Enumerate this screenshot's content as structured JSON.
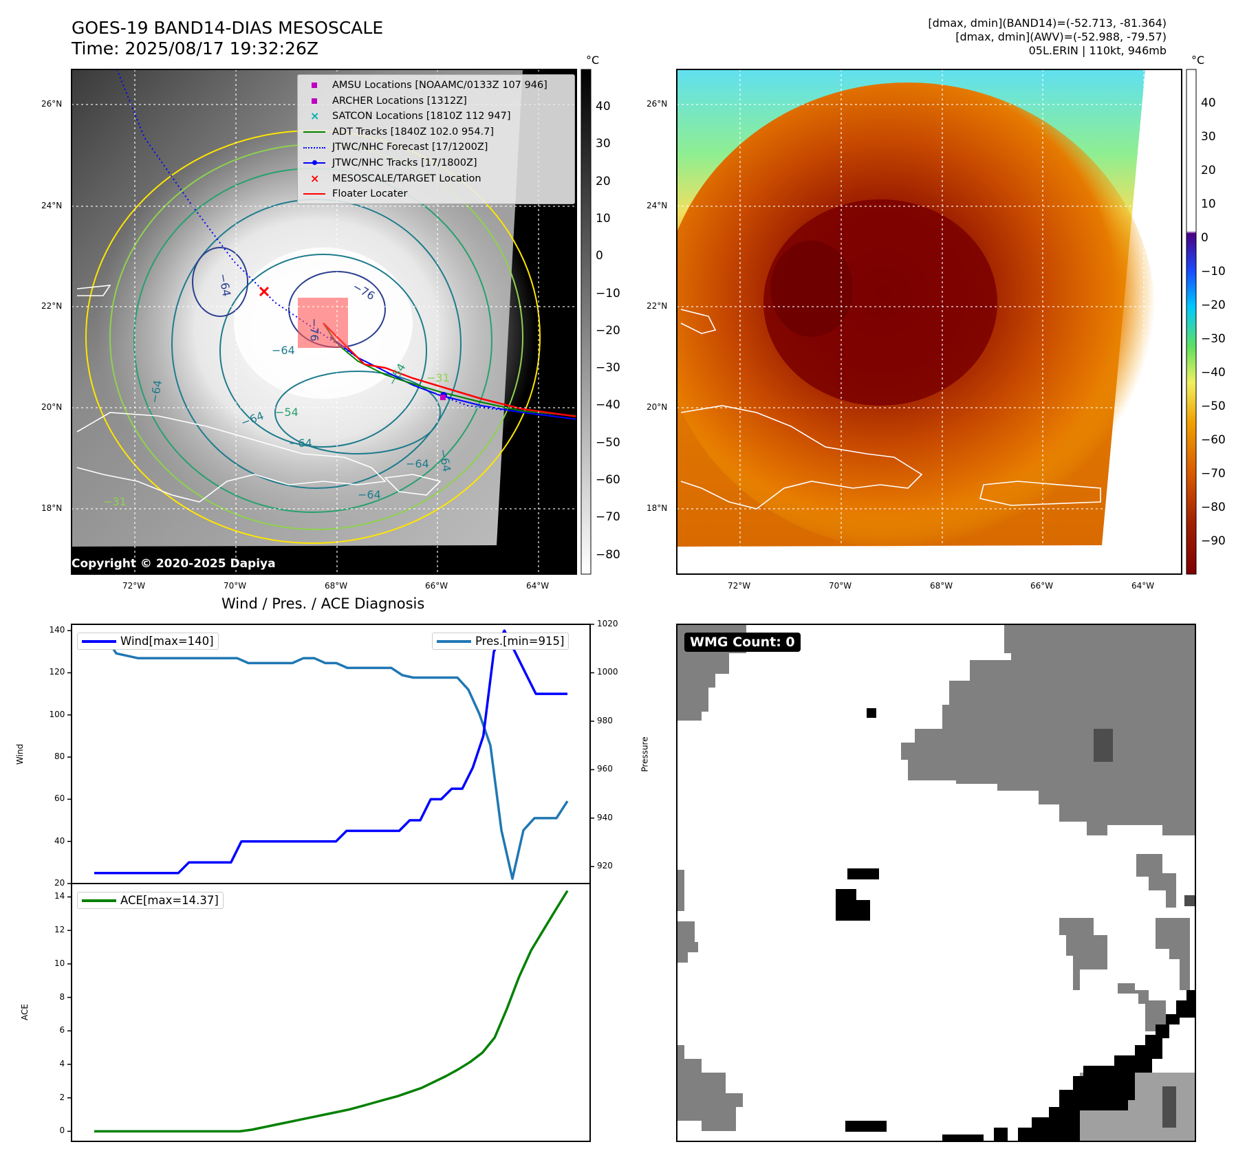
{
  "header": {
    "title_line1": "GOES-19 BAND14-DIAS MESOSCALE",
    "title_line2": "Time: 2025/08/17 19:32:26Z",
    "info_line1": "[dmax, dmin](BAND14)=(-52.713, -81.364)",
    "info_line2": "[dmax, dmin](AWV)=(-52.988, -79.57)",
    "info_line3": "05L.ERIN | 110kt, 946mb"
  },
  "colorbar_unit": "°C",
  "maps": {
    "lat_labels": [
      "26°N",
      "24°N",
      "22°N",
      "20°N",
      "18°N"
    ],
    "lon_labels": [
      "72°W",
      "70°W",
      "68°W",
      "66°W",
      "64°W"
    ],
    "ir_colorbar_ticks": [
      "40",
      "30",
      "20",
      "10",
      "0",
      "−10",
      "−20",
      "−30",
      "−40",
      "−50",
      "−60",
      "−70",
      "−80"
    ],
    "awv_colorbar_ticks": [
      "40",
      "30",
      "20",
      "10",
      "0",
      "−10",
      "−20",
      "−30",
      "−40",
      "−50",
      "−60",
      "−70",
      "−80",
      "−90"
    ],
    "contour_labels": [
      "−76",
      "−64",
      "−76",
      "−64",
      "−64",
      "−64",
      "−64",
      "−54",
      "−54",
      "−31",
      "−31",
      "−64",
      "−64",
      "−64"
    ],
    "legend": [
      {
        "label": "AMSU Locations [NOAAMC/0133Z 107 946]",
        "color": "#c000c0",
        "symbol": "square"
      },
      {
        "label": "ARCHER Locations [1312Z]",
        "color": "#c000c0",
        "symbol": "square"
      },
      {
        "label": "SATCON Locations [1810Z 112 947]",
        "color": "#00b0b0",
        "symbol": "x"
      },
      {
        "label": "ADT Tracks [1840Z 102.0 954.7]",
        "color": "#008000",
        "symbol": "line"
      },
      {
        "label": "JTWC/NHC Forecast [17/1200Z]",
        "color": "#0000ff",
        "symbol": "dotted"
      },
      {
        "label": "JTWC/NHC Tracks [17/1800Z]",
        "color": "#0000ff",
        "symbol": "line-dot"
      },
      {
        "label": "MESOSCALE/TARGET Location",
        "color": "#ff0000",
        "symbol": "x"
      },
      {
        "label": "Floater Locater",
        "color": "#ff0000",
        "symbol": "line"
      }
    ],
    "copyright": "Copyright © 2020-2025 Dapiya"
  },
  "wmg": {
    "label": "WMG Count: 0"
  },
  "chart_data": [
    {
      "type": "line",
      "title": "Wind / Pres. / ACE Diagnosis",
      "xlabel": "",
      "ylabel": "Wind",
      "ylim": [
        20,
        143
      ],
      "yticks": [
        "20",
        "40",
        "60",
        "80",
        "100",
        "120",
        "140"
      ],
      "series": [
        {
          "name": "Wind[max=140]",
          "color": "#0000ff",
          "values": [
            25,
            25,
            25,
            25,
            25,
            25,
            25,
            25,
            25,
            30,
            30,
            30,
            30,
            30,
            40,
            40,
            40,
            40,
            40,
            40,
            40,
            40,
            40,
            40,
            45,
            45,
            45,
            45,
            45,
            45,
            50,
            50,
            60,
            60,
            65,
            65,
            75,
            90,
            130,
            140,
            130,
            120,
            110,
            110,
            110,
            110
          ]
        }
      ],
      "y2label": "Pressure",
      "y2lim": [
        913,
        1020
      ],
      "y2ticks": [
        "920",
        "940",
        "960",
        "980",
        "1000",
        "1020"
      ],
      "series2": [
        {
          "name": "Pres.[min=915]",
          "color": "#1f77b4",
          "values": [
            1015,
            1015,
            1008,
            1007,
            1006,
            1006,
            1006,
            1006,
            1006,
            1006,
            1006,
            1006,
            1006,
            1006,
            1004,
            1004,
            1004,
            1004,
            1004,
            1006,
            1006,
            1004,
            1004,
            1002,
            1002,
            1002,
            1002,
            1002,
            999,
            998,
            998,
            998,
            998,
            998,
            993,
            983,
            970,
            935,
            915,
            935,
            940,
            940,
            940,
            947
          ]
        }
      ]
    },
    {
      "type": "line",
      "xlabel": "",
      "ylabel": "ACE",
      "ylim": [
        -0.6,
        14.8
      ],
      "yticks": [
        "0",
        "2",
        "4",
        "6",
        "8",
        "10",
        "12",
        "14"
      ],
      "series": [
        {
          "name": "ACE[max=14.37]",
          "color": "#008000",
          "values": [
            0,
            0,
            0,
            0,
            0,
            0,
            0,
            0,
            0,
            0,
            0,
            0,
            0,
            0.1,
            0.25,
            0.4,
            0.55,
            0.7,
            0.85,
            1.0,
            1.15,
            1.3,
            1.5,
            1.7,
            1.9,
            2.1,
            2.35,
            2.6,
            2.95,
            3.3,
            3.7,
            4.15,
            4.7,
            5.6,
            7.3,
            9.2,
            10.8,
            12.0,
            13.2,
            14.37
          ]
        }
      ]
    }
  ]
}
